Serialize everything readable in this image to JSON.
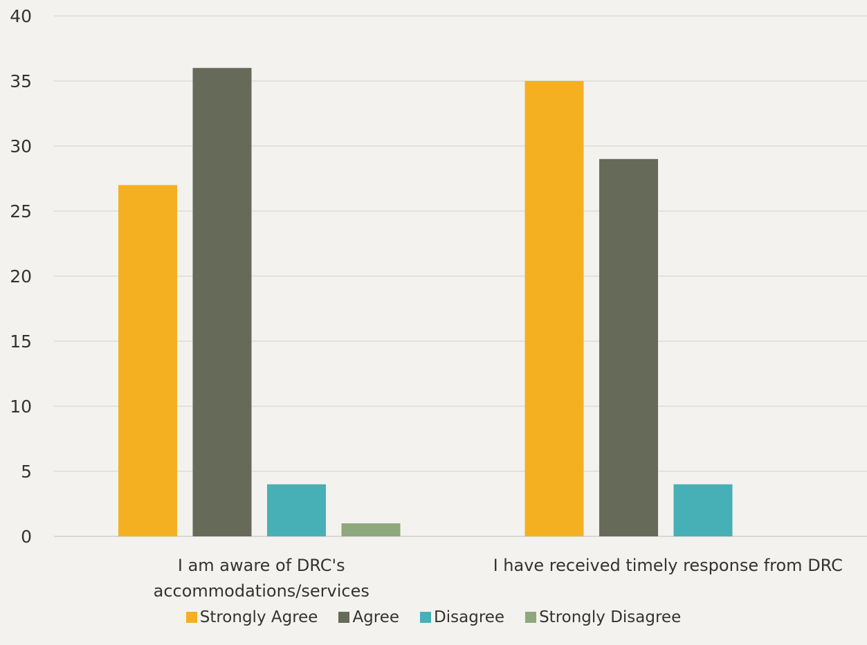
{
  "chart_data": {
    "type": "bar",
    "categories": [
      "I am aware of DRC's accommodations/services",
      "I have received timely response from DRC"
    ],
    "category_lines": [
      [
        "I am aware of DRC's",
        "accommodations/services"
      ],
      [
        "I have received timely response from DRC"
      ]
    ],
    "series": [
      {
        "name": "Strongly Agree",
        "values": [
          27,
          35
        ],
        "color": "#f5b022"
      },
      {
        "name": "Agree",
        "values": [
          36,
          29
        ],
        "color": "#666a58"
      },
      {
        "name": "Disagree",
        "values": [
          4,
          4
        ],
        "color": "#47b0b6"
      },
      {
        "name": "Strongly Disagree",
        "values": [
          1,
          null
        ],
        "color": "#8fa77c"
      }
    ],
    "ylim": [
      0,
      40
    ],
    "yticks": [
      "0",
      "5",
      "10",
      "15",
      "20",
      "25",
      "30",
      "35",
      "40"
    ],
    "grid": true,
    "legend_position": "bottom",
    "title": "",
    "xlabel": "",
    "ylabel": ""
  }
}
